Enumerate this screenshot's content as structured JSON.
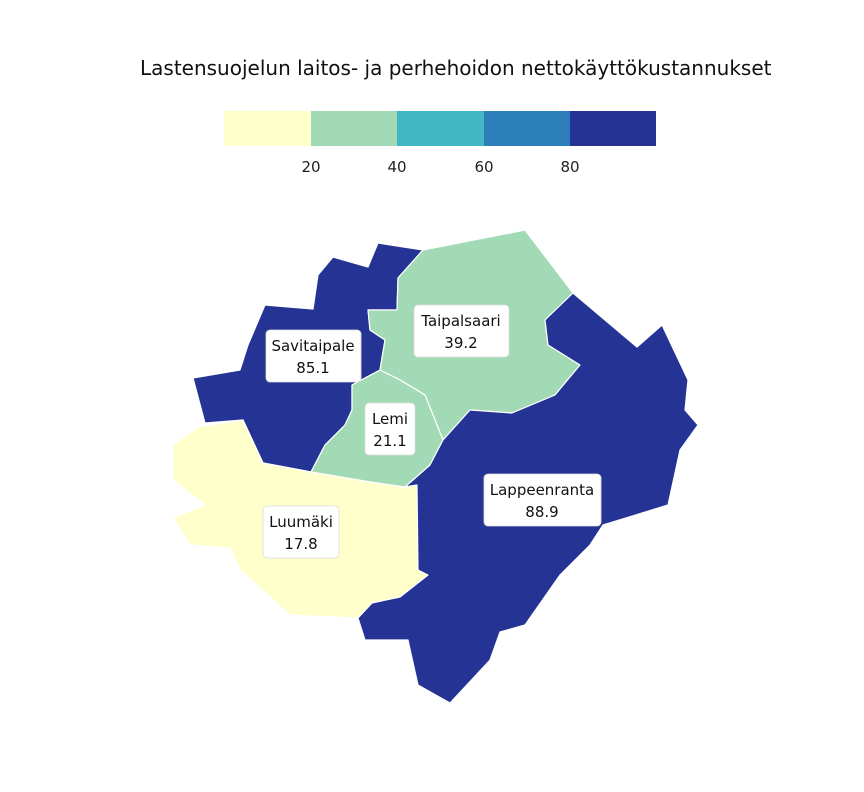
{
  "title": "Lastensuojelun laitos- ja perhehoidon nettokäyttökustannukset",
  "legend": {
    "colors": [
      "#ffffcc",
      "#a1dab4",
      "#41b6c4",
      "#2c7fb8",
      "#253494"
    ],
    "ticks": [
      "20",
      "40",
      "60",
      "80"
    ]
  },
  "regions": [
    {
      "name": "Savitaipale",
      "value": "85.1",
      "color": "#253494"
    },
    {
      "name": "Taipalsaari",
      "value": "39.2",
      "color": "#a1dab4"
    },
    {
      "name": "Lemi",
      "value": "21.1",
      "color": "#a1dab4"
    },
    {
      "name": "Luumäki",
      "value": "17.8",
      "color": "#ffffcc"
    },
    {
      "name": "Lappeenranta",
      "value": "88.9",
      "color": "#253494"
    }
  ]
}
